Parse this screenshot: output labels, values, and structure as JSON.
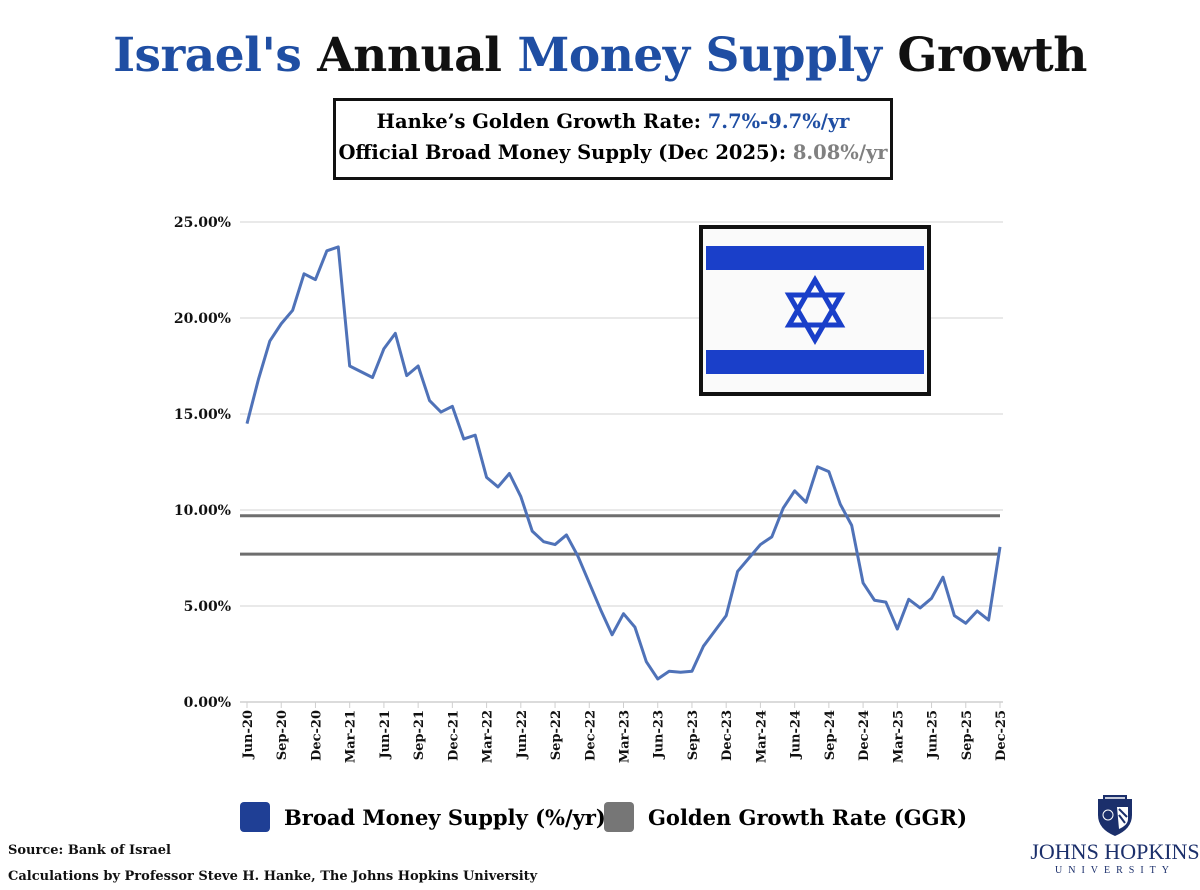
{
  "title": {
    "part1": "Israel's",
    "part2": " Annual ",
    "part3": "Money Supply",
    "part4": " Growth"
  },
  "infobox": {
    "line1_label": "Hanke’s Golden Growth Rate: ",
    "line1_value": "7.7%-9.7%/yr",
    "line2_label": "Official Broad Money Supply (Dec 2025): ",
    "line2_value": "8.08%/yr"
  },
  "colors": {
    "series": "#4f72b8",
    "ggr": "#6e6e6e",
    "title_blue": "#1f4ea3",
    "flag_blue": "#1a3fc9"
  },
  "flag_icon": "israel-flag",
  "chart_data": {
    "type": "line",
    "title": "",
    "xlabel": "",
    "ylabel": "",
    "ylim": [
      0,
      25
    ],
    "yticks": [
      "0.00%",
      "5.00%",
      "10.00%",
      "15.00%",
      "20.00%",
      "25.00%"
    ],
    "grid": true,
    "x_start": "Jun-20",
    "x_end": "Dec-25",
    "xtick_labels": [
      "Jun-20",
      "Sep-20",
      "Dec-20",
      "Mar-21",
      "Jun-21",
      "Sep-21",
      "Dec-21",
      "Mar-22",
      "Jun-22",
      "Sep-22",
      "Dec-22",
      "Mar-23",
      "Jun-23",
      "Sep-23",
      "Dec-23",
      "Mar-24",
      "Jun-24",
      "Sep-24",
      "Dec-24",
      "Mar-25",
      "Jun-25",
      "Sep-25",
      "Dec-25"
    ],
    "series": [
      {
        "name": "Broad Money Supply (%/yr)",
        "values": [
          14.5,
          16.8,
          18.8,
          19.7,
          20.4,
          22.3,
          22.0,
          23.5,
          23.7,
          17.5,
          17.2,
          16.9,
          18.4,
          19.2,
          17.0,
          17.5,
          15.7,
          15.1,
          15.4,
          13.7,
          13.9,
          11.7,
          11.2,
          11.9,
          10.7,
          8.9,
          8.35,
          8.2,
          8.7,
          7.6,
          6.2,
          4.8,
          3.5,
          4.6,
          3.9,
          2.1,
          1.2,
          1.6,
          1.55,
          1.6,
          2.9,
          3.7,
          4.5,
          6.8,
          7.5,
          8.2,
          8.6,
          10.1,
          11.0,
          10.4,
          12.25,
          12.0,
          10.3,
          9.2,
          6.2,
          5.3,
          5.2,
          3.8,
          5.35,
          4.9,
          5.4,
          6.5,
          4.5,
          4.1,
          4.74,
          4.27,
          8.08
        ]
      },
      {
        "name": "Golden Growth Rate (GGR)",
        "bounds": [
          7.7,
          9.7
        ]
      }
    ],
    "legend": "bottom"
  },
  "footer": {
    "source": "Source: Bank of Israel",
    "calc": "Calculations by Professor Steve H. Hanke, The Johns Hopkins University"
  },
  "logo": {
    "line1": "JOHNS HOPKINS",
    "line2": "UNIVERSITY"
  }
}
